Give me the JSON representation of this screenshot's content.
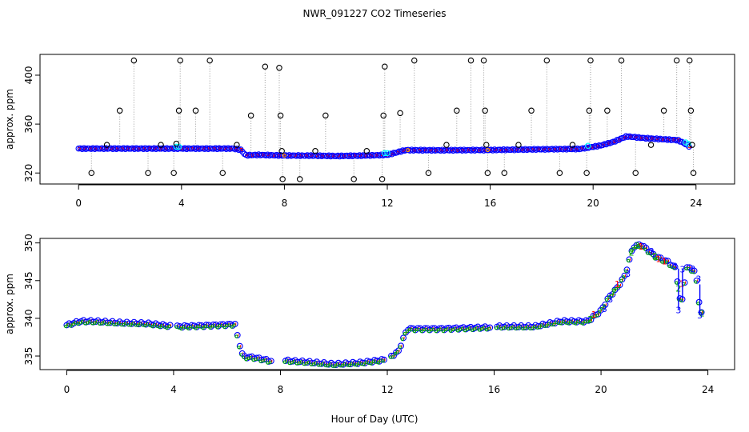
{
  "chart_data": {
    "title": "NWR_091227  CO2 Timeseries",
    "xlabel": "Hour of Day (UTC)",
    "colors": {
      "raw": "#000000",
      "flag": "#ffa500",
      "series1": "#ff0000",
      "series2": "#00aa00",
      "series3": "#0000ff",
      "calibration": "#00ffff",
      "guide": "#999999"
    },
    "panels": [
      {
        "type": "scatter",
        "ylabel": "approx. ppm",
        "xlim": [
          -1.5,
          25.5
        ],
        "ylim": [
          311,
          417
        ],
        "xticks": [
          "0",
          "4",
          "8",
          "12",
          "16",
          "20",
          "24"
        ],
        "yticks": [
          "320",
          "360",
          "400"
        ],
        "baseline": [
          [
            0,
            340
          ],
          [
            1,
            340
          ],
          [
            2,
            340
          ],
          [
            3,
            340
          ],
          [
            4,
            340
          ],
          [
            5,
            340
          ],
          [
            6,
            340
          ],
          [
            6.3,
            339
          ],
          [
            6.5,
            334.5
          ],
          [
            7,
            334.8
          ],
          [
            8,
            334.3
          ],
          [
            9,
            334.2
          ],
          [
            10,
            333.9
          ],
          [
            11,
            334.2
          ],
          [
            12,
            334.8
          ],
          [
            12.7,
            338.7
          ],
          [
            14,
            338.6
          ],
          [
            16,
            338.8
          ],
          [
            18,
            339.4
          ],
          [
            19.5,
            339.7
          ],
          [
            20.3,
            342.5
          ],
          [
            20.8,
            345.5
          ],
          [
            21.3,
            350
          ],
          [
            22,
            348.5
          ],
          [
            22.8,
            347.5
          ],
          [
            23.3,
            346.8
          ],
          [
            23.5,
            344.8
          ],
          [
            23.8,
            341
          ]
        ],
        "spikes": [
          [
            0.5,
            320
          ],
          [
            1.1,
            343
          ],
          [
            1.6,
            371
          ],
          [
            2.15,
            412
          ],
          [
            2.7,
            320
          ],
          [
            3.2,
            343
          ],
          [
            3.7,
            320
          ],
          [
            3.8,
            344
          ],
          [
            3.9,
            371
          ],
          [
            3.95,
            412
          ],
          [
            4.55,
            371
          ],
          [
            5.1,
            412
          ],
          [
            5.6,
            320
          ],
          [
            6.15,
            343
          ],
          [
            6.7,
            367
          ],
          [
            7.25,
            407
          ],
          [
            7.8,
            406
          ],
          [
            7.85,
            367
          ],
          [
            7.9,
            338
          ],
          [
            7.93,
            315
          ],
          [
            8.6,
            315
          ],
          [
            9.2,
            338
          ],
          [
            9.6,
            367
          ],
          [
            10.7,
            315
          ],
          [
            11.2,
            338
          ],
          [
            11.8,
            315
          ],
          [
            11.85,
            367
          ],
          [
            11.9,
            407
          ],
          [
            12.5,
            369
          ],
          [
            13.05,
            412
          ],
          [
            13.6,
            320
          ],
          [
            14.3,
            343
          ],
          [
            14.7,
            371
          ],
          [
            15.25,
            412
          ],
          [
            15.75,
            412
          ],
          [
            15.8,
            371
          ],
          [
            15.85,
            343
          ],
          [
            15.9,
            320
          ],
          [
            16.55,
            320
          ],
          [
            17.1,
            343
          ],
          [
            17.6,
            371
          ],
          [
            18.2,
            412
          ],
          [
            18.7,
            320
          ],
          [
            19.2,
            343
          ],
          [
            19.75,
            320
          ],
          [
            19.85,
            371
          ],
          [
            19.9,
            412
          ],
          [
            20.55,
            371
          ],
          [
            21.1,
            412
          ],
          [
            21.65,
            320
          ],
          [
            22.25,
            343
          ],
          [
            22.75,
            371
          ],
          [
            23.25,
            412
          ],
          [
            23.75,
            412
          ],
          [
            23.8,
            371
          ],
          [
            23.85,
            343
          ],
          [
            23.9,
            320
          ]
        ]
      },
      {
        "type": "scatter",
        "ylabel": "approx. ppm",
        "xlim": [
          -1.0,
          25.0
        ],
        "ylim": [
          333.2,
          350.6
        ],
        "xticks": [
          "0",
          "4",
          "8",
          "12",
          "16",
          "20",
          "24"
        ],
        "yticks": [
          "335",
          "340",
          "345",
          "350"
        ],
        "gaps": [
          [
            3.9,
            4.1
          ],
          [
            7.7,
            8.1
          ],
          [
            11.9,
            12.1
          ],
          [
            15.9,
            16.1
          ]
        ],
        "series_labels": [
          "1",
          "2",
          "3"
        ],
        "profile": [
          [
            0,
            339.1
          ],
          [
            0.5,
            339.6
          ],
          [
            1,
            339.6
          ],
          [
            2,
            339.4
          ],
          [
            3,
            339.3
          ],
          [
            3.8,
            339
          ],
          [
            4.1,
            338.9
          ],
          [
            5,
            339
          ],
          [
            6.3,
            339.2
          ],
          [
            6.4,
            337.5
          ],
          [
            6.6,
            334.9
          ],
          [
            7,
            334.8
          ],
          [
            7.7,
            334.3
          ],
          [
            8.1,
            334.4
          ],
          [
            9,
            334.2
          ],
          [
            10,
            333.9
          ],
          [
            11,
            334.1
          ],
          [
            11.9,
            334.5
          ],
          [
            12.1,
            334.9
          ],
          [
            12.4,
            335.5
          ],
          [
            12.6,
            337.3
          ],
          [
            12.75,
            338.6
          ],
          [
            14,
            338.6
          ],
          [
            15.9,
            338.8
          ],
          [
            16.1,
            338.9
          ],
          [
            17.5,
            338.9
          ],
          [
            18.5,
            339.6
          ],
          [
            19.5,
            339.6
          ],
          [
            20,
            341
          ],
          [
            20.3,
            342.8
          ],
          [
            20.6,
            344
          ],
          [
            20.9,
            345.7
          ],
          [
            21.2,
            349.5
          ],
          [
            21.5,
            349.8
          ],
          [
            22,
            348.3
          ],
          [
            22.5,
            347.5
          ],
          [
            22.8,
            346.6
          ],
          [
            23,
            341.3
          ],
          [
            23.2,
            346.8
          ],
          [
            23.5,
            346.3
          ],
          [
            23.6,
            344.5
          ],
          [
            23.7,
            341.3
          ],
          [
            23.8,
            340.5
          ]
        ],
        "dips": [
          [
            22.9,
            341.2
          ],
          [
            23.05,
            346.6
          ],
          [
            23.7,
            340.5
          ]
        ]
      }
    ]
  }
}
